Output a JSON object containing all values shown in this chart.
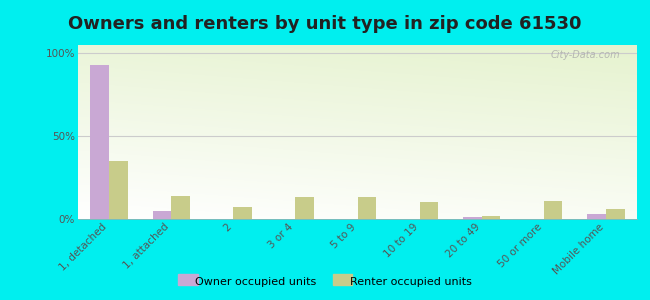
{
  "title": "Owners and renters by unit type in zip code 61530",
  "categories": [
    "1, detached",
    "1, attached",
    "2",
    "3 or 4",
    "5 to 9",
    "10 to 19",
    "20 to 49",
    "50 or more",
    "Mobile home"
  ],
  "owner_values": [
    93,
    5,
    0,
    0,
    0,
    0,
    1,
    0,
    3
  ],
  "renter_values": [
    35,
    14,
    7,
    13,
    13,
    10,
    2,
    11,
    6
  ],
  "owner_color": "#c9a8d4",
  "renter_color": "#c8cc8a",
  "background_color": "#00efef",
  "ylabel_ticks": [
    "0%",
    "50%",
    "100%"
  ],
  "ytick_values": [
    0,
    50,
    100
  ],
  "ylim": [
    0,
    105
  ],
  "bar_width": 0.3,
  "legend_owner": "Owner occupied units",
  "legend_renter": "Renter occupied units",
  "watermark": "City-Data.com",
  "title_fontsize": 13,
  "tick_fontsize": 7.5
}
